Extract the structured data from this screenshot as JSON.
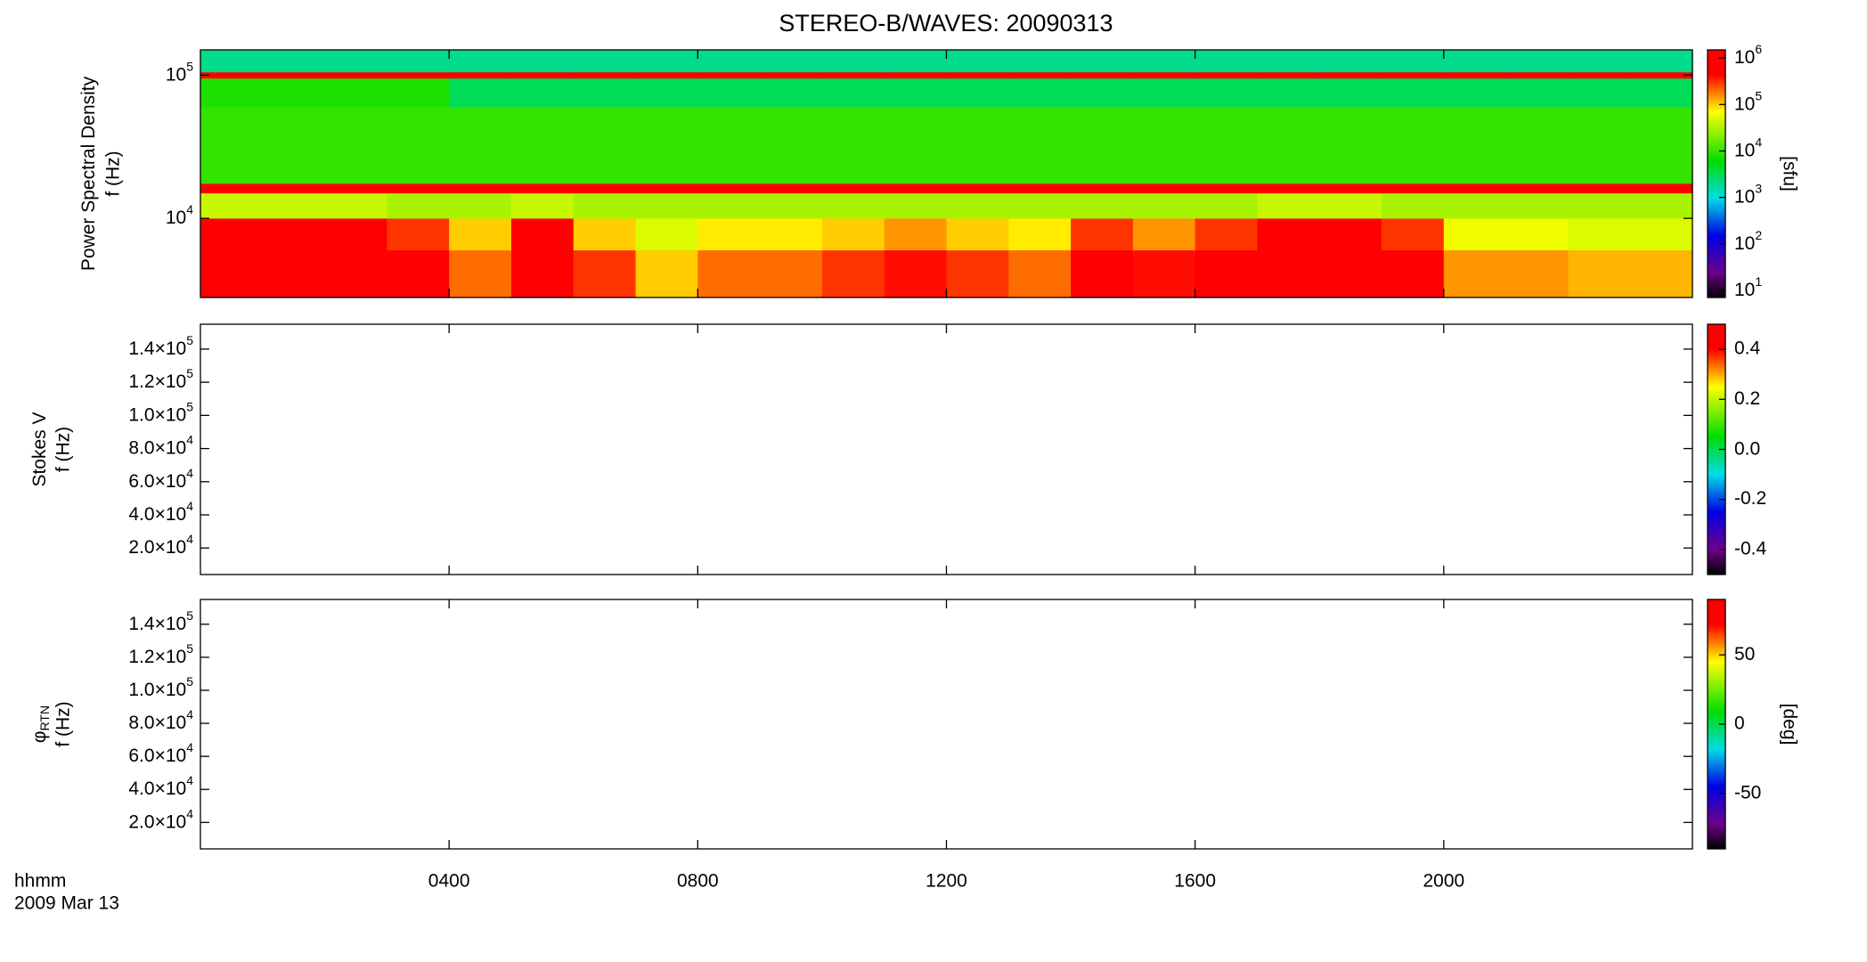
{
  "chart_data": [
    {
      "type": "heatmap",
      "title": "STEREO-B/WAVES: 20090313",
      "ylabel": "Power Spectral Density",
      "ylabel2": "f (Hz)",
      "colorbar_label": "[sfu]",
      "log_y": true,
      "log_z": true,
      "ylim": [
        2800,
        150000
      ],
      "yticks": [
        {
          "value": 10000,
          "label": "10",
          "sup": "4"
        },
        {
          "value": 100000,
          "label": "10",
          "sup": "5"
        }
      ],
      "zlim": [
        7,
        1500000
      ],
      "zticks": [
        {
          "value": 10,
          "label": "10",
          "sup": "1"
        },
        {
          "value": 100,
          "label": "10",
          "sup": "2"
        },
        {
          "value": 1000,
          "label": "10",
          "sup": "3"
        },
        {
          "value": 10000,
          "label": "10",
          "sup": "4"
        },
        {
          "value": 100000,
          "label": "10",
          "sup": "5"
        },
        {
          "value": 1000000,
          "label": "10",
          "sup": "6"
        }
      ],
      "x_bins": [
        0,
        1,
        2,
        3,
        4,
        5,
        6,
        7,
        8,
        9,
        10,
        11,
        12,
        13,
        14,
        15,
        16,
        17,
        18,
        19,
        20,
        21,
        22,
        23,
        24
      ],
      "y_bins": [
        2800,
        6000,
        10000,
        15000,
        17500,
        60000,
        95000,
        105000,
        150000
      ],
      "values": [
        [
          1000000,
          1000000,
          1000000,
          800000,
          200000,
          600000,
          300000,
          100000,
          200000,
          200000,
          300000,
          400000,
          300000,
          200000,
          600000,
          400000,
          500000,
          1000000,
          1000000,
          600000,
          150000,
          150000,
          120000,
          120000
        ],
        [
          1000000,
          1000000,
          1000000,
          300000,
          100000,
          600000,
          100000,
          50000,
          80000,
          80000,
          100000,
          150000,
          100000,
          80000,
          300000,
          150000,
          300000,
          1000000,
          1000000,
          300000,
          60000,
          60000,
          50000,
          50000
        ],
        [
          40000,
          40000,
          40000,
          30000,
          30000,
          40000,
          30000,
          30000,
          30000,
          30000,
          30000,
          30000,
          30000,
          30000,
          30000,
          30000,
          30000,
          40000,
          40000,
          30000,
          30000,
          30000,
          30000,
          30000
        ],
        [
          1000000,
          1000000,
          1000000,
          1000000,
          1000000,
          1000000,
          1000000,
          1000000,
          1000000,
          1000000,
          1000000,
          1000000,
          1000000,
          1000000,
          1000000,
          1000000,
          1000000,
          1000000,
          1000000,
          1000000,
          1000000,
          1000000,
          1000000,
          1000000
        ],
        [
          10000,
          10000,
          10000,
          10000,
          10000,
          10000,
          10000,
          10000,
          10000,
          10000,
          10000,
          10000,
          10000,
          10000,
          10000,
          10000,
          10000,
          10000,
          10000,
          10000,
          10000,
          10000,
          10000,
          10000
        ],
        [
          8000,
          8000,
          8000,
          8000,
          3000,
          3000,
          3000,
          3000,
          3000,
          3000,
          3000,
          3000,
          3000,
          3000,
          3000,
          3000,
          3000,
          3000,
          3000,
          3000,
          3000,
          3000,
          3000,
          3000
        ],
        [
          800000,
          800000,
          800000,
          800000,
          800000,
          800000,
          800000,
          800000,
          800000,
          800000,
          800000,
          800000,
          800000,
          800000,
          800000,
          800000,
          800000,
          800000,
          800000,
          800000,
          800000,
          800000,
          800000,
          800000
        ],
        [
          2000,
          2000,
          2000,
          2000,
          2000,
          2000,
          2000,
          2000,
          2000,
          2000,
          2000,
          2000,
          2000,
          2000,
          2000,
          2000,
          2000,
          2000,
          2000,
          2000,
          2000,
          2000,
          2000,
          2000
        ]
      ]
    },
    {
      "type": "heatmap",
      "ylabel": "Stokes V",
      "ylabel2": "f (Hz)",
      "ylim": [
        4000,
        155000
      ],
      "yticks": [
        {
          "value": 20000,
          "label": "2.0×10",
          "sup": "4"
        },
        {
          "value": 40000,
          "label": "4.0×10",
          "sup": "4"
        },
        {
          "value": 60000,
          "label": "6.0×10",
          "sup": "4"
        },
        {
          "value": 80000,
          "label": "8.0×10",
          "sup": "4"
        },
        {
          "value": 100000,
          "label": "1.0×10",
          "sup": "5"
        },
        {
          "value": 120000,
          "label": "1.2×10",
          "sup": "5"
        },
        {
          "value": 140000,
          "label": "1.4×10",
          "sup": "5"
        }
      ],
      "zlim": [
        -0.5,
        0.5
      ],
      "zticks": [
        -0.4,
        -0.2,
        {
          "value": 0,
          "label": "0.0"
        },
        0.2,
        0.4
      ]
    },
    {
      "type": "heatmap",
      "ylabel": "φ",
      "ylabel_sub": "RTN",
      "ylabel2": "f (Hz)",
      "colorbar_label": "[deg]",
      "ylim": [
        4000,
        155000
      ],
      "yticks": [
        {
          "value": 20000,
          "label": "2.0×10",
          "sup": "4"
        },
        {
          "value": 40000,
          "label": "4.0×10",
          "sup": "4"
        },
        {
          "value": 60000,
          "label": "6.0×10",
          "sup": "4"
        },
        {
          "value": 80000,
          "label": "8.0×10",
          "sup": "4"
        },
        {
          "value": 100000,
          "label": "1.0×10",
          "sup": "5"
        },
        {
          "value": 120000,
          "label": "1.2×10",
          "sup": "5"
        },
        {
          "value": 140000,
          "label": "1.4×10",
          "sup": "5"
        }
      ],
      "zlim": [
        -90,
        90
      ],
      "zticks": [
        -50,
        0,
        50
      ],
      "xlim": [
        0,
        24
      ],
      "xticks": [
        {
          "value": 4,
          "label": "0400"
        },
        {
          "value": 8,
          "label": "0800"
        },
        {
          "value": 12,
          "label": "1200"
        },
        {
          "value": 16,
          "label": "1600"
        },
        {
          "value": 20,
          "label": "2000"
        }
      ],
      "xlabel": "hhmm",
      "date": "2009 Mar 13"
    }
  ]
}
